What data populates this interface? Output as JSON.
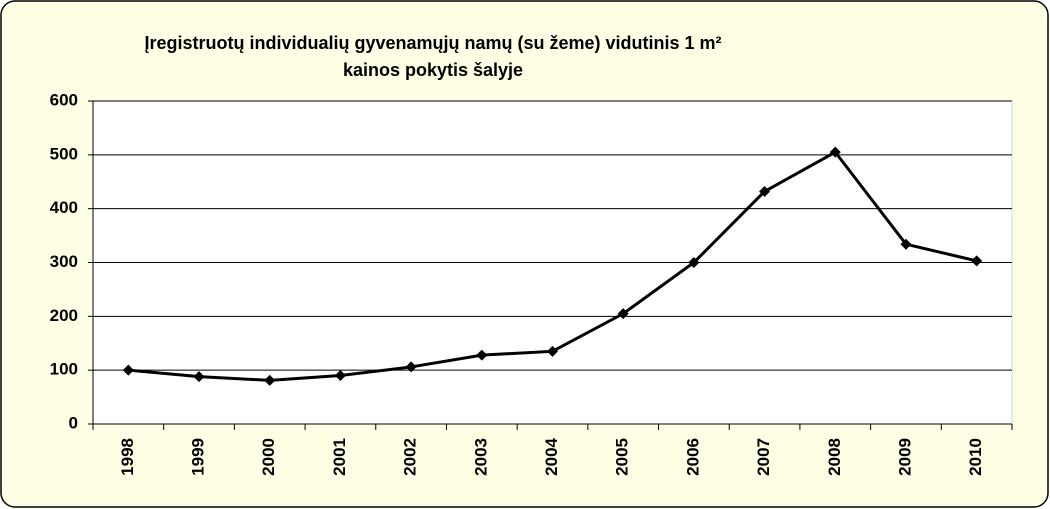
{
  "chart_data": {
    "type": "line",
    "title": [
      "Įregistruotų individualių gyvenamųjų namų (su žeme) vidutinis 1 m²",
      "kainos pokytis šalyje"
    ],
    "categories": [
      "1998",
      "1999",
      "2000",
      "2001",
      "2002",
      "2003",
      "2004",
      "2005",
      "2006",
      "2007",
      "2008",
      "2009",
      "2010"
    ],
    "values": [
      100,
      88,
      81,
      90,
      106,
      128,
      135,
      205,
      300,
      432,
      505,
      334,
      303
    ],
    "color": "#000000",
    "ylim": [
      0,
      600
    ],
    "yticks": [
      0,
      100,
      200,
      300,
      400,
      500,
      600
    ],
    "grid": true
  }
}
